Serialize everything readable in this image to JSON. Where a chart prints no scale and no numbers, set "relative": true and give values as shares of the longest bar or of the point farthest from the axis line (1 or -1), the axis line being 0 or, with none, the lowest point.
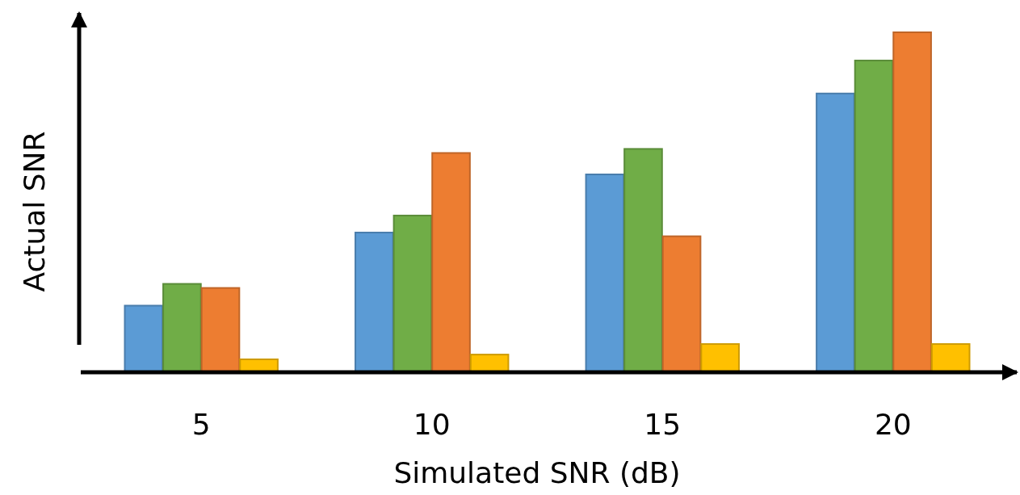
{
  "chart_data": {
    "type": "bar",
    "relative": true,
    "xlabel": "Simulated SNR (dB)",
    "ylabel": "Actual SNR",
    "categories": [
      "5",
      "10",
      "15",
      "20"
    ],
    "series": [
      {
        "color": "#5b9bd5",
        "values": [
          0.196,
          0.411,
          0.582,
          0.82
        ]
      },
      {
        "color": "#70ad47",
        "values": [
          0.26,
          0.461,
          0.657,
          0.917
        ]
      },
      {
        "color": "#ed7d31",
        "values": [
          0.248,
          0.645,
          0.4,
          1
        ]
      },
      {
        "color": "#ffc000",
        "values": [
          0.038,
          0.052,
          0.083,
          0.083
        ]
      }
    ]
  }
}
